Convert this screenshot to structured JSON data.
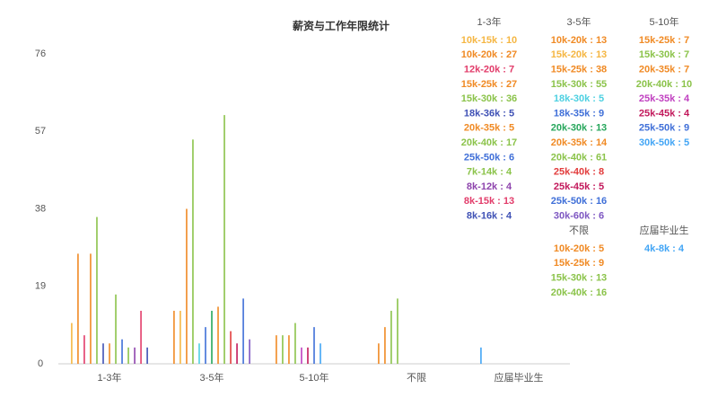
{
  "chart_data": {
    "type": "bar",
    "title": "薪资与工作年限统计",
    "ylim": [
      0,
      76
    ],
    "yticks": [
      0,
      19,
      38,
      57,
      76
    ],
    "groups": [
      {
        "name": "1-3年",
        "items": [
          {
            "label": "10k-15k : 10",
            "value": 10,
            "color": "#f5b642"
          },
          {
            "label": "10k-20k : 27",
            "value": 27,
            "color": "#f08a24"
          },
          {
            "label": "12k-20k : 7",
            "value": 7,
            "color": "#e23c6a"
          },
          {
            "label": "15k-25k : 27",
            "value": 27,
            "color": "#f08a24"
          },
          {
            "label": "15k-30k : 36",
            "value": 36,
            "color": "#8bc34a"
          },
          {
            "label": "18k-36k : 5",
            "value": 5,
            "color": "#3f51b5"
          },
          {
            "label": "20k-35k : 5",
            "value": 5,
            "color": "#f08a24"
          },
          {
            "label": "20k-40k : 17",
            "value": 17,
            "color": "#8bc34a"
          },
          {
            "label": "25k-50k : 6",
            "value": 6,
            "color": "#3f6fd8"
          },
          {
            "label": "7k-14k : 4",
            "value": 4,
            "color": "#8bc34a"
          },
          {
            "label": "8k-12k : 4",
            "value": 4,
            "color": "#8e44ad"
          },
          {
            "label": "8k-15k : 13",
            "value": 13,
            "color": "#e23c6a"
          },
          {
            "label": "8k-16k : 4",
            "value": 4,
            "color": "#3f51b5"
          }
        ]
      },
      {
        "name": "3-5年",
        "items": [
          {
            "label": "10k-20k : 13",
            "value": 13,
            "color": "#f08a24"
          },
          {
            "label": "15k-20k : 13",
            "value": 13,
            "color": "#f5b642"
          },
          {
            "label": "15k-25k : 38",
            "value": 38,
            "color": "#f08a24"
          },
          {
            "label": "15k-30k : 55",
            "value": 55,
            "color": "#8bc34a"
          },
          {
            "label": "18k-30k : 5",
            "value": 5,
            "color": "#4dd0e1"
          },
          {
            "label": "18k-35k : 9",
            "value": 9,
            "color": "#3f6fd8"
          },
          {
            "label": "20k-30k : 13",
            "value": 13,
            "color": "#26a65b"
          },
          {
            "label": "20k-35k : 14",
            "value": 14,
            "color": "#f08a24"
          },
          {
            "label": "20k-40k : 61",
            "value": 61,
            "color": "#8bc34a"
          },
          {
            "label": "25k-40k : 8",
            "value": 8,
            "color": "#e23c3c"
          },
          {
            "label": "25k-45k : 5",
            "value": 5,
            "color": "#c2185b"
          },
          {
            "label": "25k-50k : 16",
            "value": 16,
            "color": "#3f6fd8"
          },
          {
            "label": "30k-60k : 6",
            "value": 6,
            "color": "#7e57c2"
          }
        ]
      },
      {
        "name": "5-10年",
        "items": [
          {
            "label": "15k-25k : 7",
            "value": 7,
            "color": "#f08a24"
          },
          {
            "label": "15k-30k : 7",
            "value": 7,
            "color": "#8bc34a"
          },
          {
            "label": "20k-35k : 7",
            "value": 7,
            "color": "#f08a24"
          },
          {
            "label": "20k-40k : 10",
            "value": 10,
            "color": "#8bc34a"
          },
          {
            "label": "25k-35k : 4",
            "value": 4,
            "color": "#c040c0"
          },
          {
            "label": "25k-45k : 4",
            "value": 4,
            "color": "#c2185b"
          },
          {
            "label": "25k-50k : 9",
            "value": 9,
            "color": "#3f6fd8"
          },
          {
            "label": "30k-50k : 5",
            "value": 5,
            "color": "#42a5f5"
          }
        ]
      },
      {
        "name": "不限",
        "items": [
          {
            "label": "10k-20k : 5",
            "value": 5,
            "color": "#f08a24"
          },
          {
            "label": "15k-25k : 9",
            "value": 9,
            "color": "#f08a24"
          },
          {
            "label": "15k-30k : 13",
            "value": 13,
            "color": "#8bc34a"
          },
          {
            "label": "20k-40k : 16",
            "value": 16,
            "color": "#8bc34a"
          }
        ]
      },
      {
        "name": "应届毕业生",
        "items": [
          {
            "label": "4k-8k : 4",
            "value": 4,
            "color": "#42a5f5"
          }
        ]
      }
    ]
  }
}
